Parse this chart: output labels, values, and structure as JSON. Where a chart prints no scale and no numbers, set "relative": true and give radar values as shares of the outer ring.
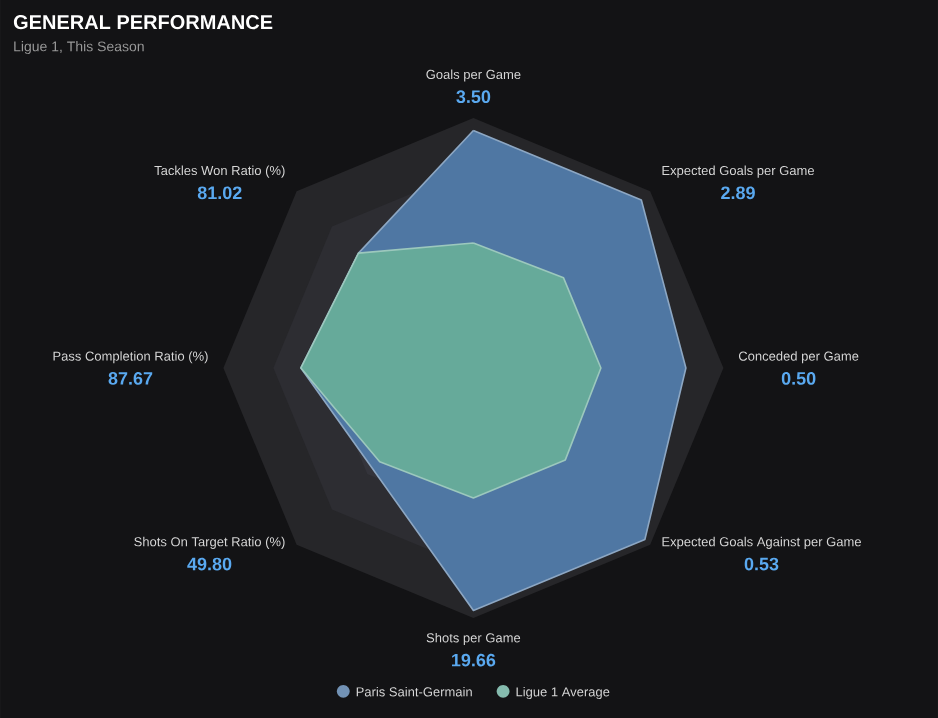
{
  "chart_data": {
    "type": "radar",
    "title": "GENERAL PERFORMANCE",
    "subtitle": "Ligue 1, This Season",
    "categories": [
      "Goals per Game",
      "Expected Goals per Game",
      "Conceded per Game",
      "Expected Goals Against per Game",
      "Shots per Game",
      "Shots On Target Ratio (%)",
      "Pass Completion Ratio (%)",
      "Tackles Won Ratio (%)"
    ],
    "relative": true,
    "grid": true,
    "legend": "bottom",
    "annotations": [
      "3.50",
      "2.89",
      "0.50",
      "0.53",
      "19.66",
      "49.80",
      "87.67",
      "81.02"
    ],
    "series": [
      {
        "name": "Paris Saint-Germain",
        "color": "#4f77a3",
        "values": [
          0.95,
          0.95,
          0.85,
          0.97,
          0.97,
          0.57,
          0.69,
          0.65
        ]
      },
      {
        "name": "Ligue 1 Average",
        "color": "#66aa9a",
        "values": [
          0.5,
          0.51,
          0.51,
          0.52,
          0.52,
          0.53,
          0.69,
          0.65
        ]
      }
    ]
  }
}
